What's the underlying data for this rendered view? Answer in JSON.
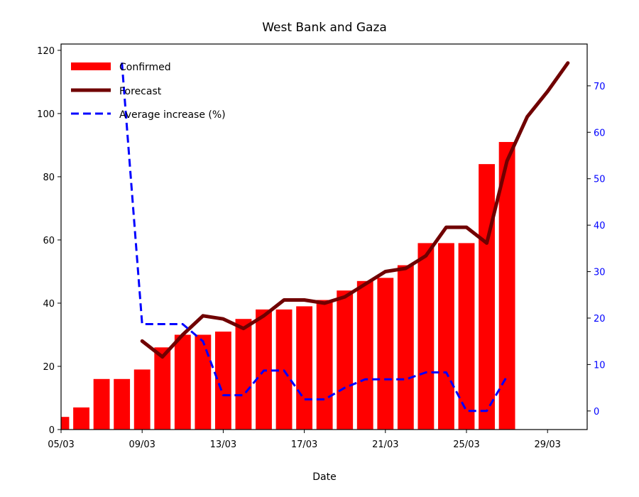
{
  "chart_data": {
    "type": "bar",
    "title": "West Bank and Gaza",
    "xlabel": "Date",
    "ylabel": "",
    "ylim": [
      0,
      122
    ],
    "y2lim": [
      -4,
      79
    ],
    "x_start": "05/03",
    "xtick_labels": [
      "05/03",
      "09/03",
      "13/03",
      "17/03",
      "21/03",
      "25/03",
      "29/03"
    ],
    "yticks": [
      0,
      20,
      40,
      60,
      80,
      100,
      120
    ],
    "y2ticks": [
      0,
      10,
      20,
      30,
      40,
      50,
      60,
      70
    ],
    "legend_position": "top-left",
    "grid": false,
    "colors": {
      "confirmed": "#ff0000",
      "forecast": "#700000",
      "average": "#0000ff",
      "right_axis": "#0000ff"
    },
    "series": [
      {
        "name": "Confirmed",
        "type": "bar",
        "axis": "left",
        "x": [
          "05/03",
          "06/03",
          "07/03",
          "08/03",
          "09/03",
          "10/03",
          "11/03",
          "12/03",
          "13/03",
          "14/03",
          "15/03",
          "16/03",
          "17/03",
          "18/03",
          "19/03",
          "20/03",
          "21/03",
          "22/03",
          "23/03",
          "24/03",
          "25/03",
          "26/03",
          "27/03"
        ],
        "values": [
          4,
          7,
          16,
          16,
          19,
          26,
          30,
          30,
          31,
          35,
          38,
          38,
          39,
          41,
          44,
          47,
          48,
          52,
          59,
          59,
          59,
          84,
          91
        ]
      },
      {
        "name": "Forecast",
        "type": "line",
        "axis": "left",
        "x": [
          "09/03",
          "10/03",
          "11/03",
          "12/03",
          "13/03",
          "14/03",
          "15/03",
          "16/03",
          "17/03",
          "18/03",
          "19/03",
          "20/03",
          "21/03",
          "22/03",
          "23/03",
          "24/03",
          "25/03",
          "26/03",
          "27/03",
          "28/03",
          "29/03",
          "30/03"
        ],
        "values": [
          28,
          23,
          30,
          36,
          35,
          32,
          36,
          41,
          41,
          40,
          42,
          46,
          50,
          51,
          55,
          64,
          64,
          59,
          85,
          99,
          107,
          116
        ]
      },
      {
        "name": "Average increase (%)",
        "type": "dashed-line",
        "axis": "right",
        "x": [
          "08/03",
          "09/03",
          "10/03",
          "11/03",
          "12/03",
          "13/03",
          "14/03",
          "15/03",
          "16/03",
          "17/03",
          "18/03",
          "19/03",
          "20/03",
          "21/03",
          "22/03",
          "23/03",
          "24/03",
          "25/03",
          "26/03",
          "27/03"
        ],
        "values": [
          75,
          18.7,
          18.7,
          18.7,
          15,
          3.4,
          3.4,
          8.7,
          8.7,
          2.5,
          2.5,
          5,
          6.8,
          6.8,
          6.8,
          8.3,
          8.3,
          0,
          0,
          7.5
        ]
      }
    ]
  }
}
